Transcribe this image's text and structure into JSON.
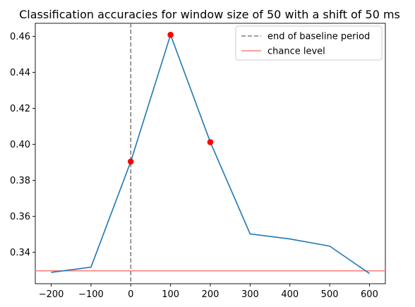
{
  "chart_data": {
    "type": "line",
    "title": "Classification accuracies for window size of 50 with a shift of 50 ms",
    "xlabel": "",
    "ylabel": "",
    "xlim": [
      -240,
      640
    ],
    "ylim": [
      0.3225,
      0.4673
    ],
    "x_ticks": [
      -200,
      -100,
      0,
      100,
      200,
      300,
      400,
      500,
      600
    ],
    "x_tick_labels": [
      "−200",
      "−100",
      "0",
      "100",
      "200",
      "300",
      "400",
      "500",
      "600"
    ],
    "y_ticks": [
      0.34,
      0.36,
      0.38,
      0.4,
      0.42,
      0.44,
      0.46
    ],
    "y_tick_labels": [
      "0.34",
      "0.36",
      "0.38",
      "0.40",
      "0.42",
      "0.44",
      "0.46"
    ],
    "grid": false,
    "legend_position": "top-right",
    "series": [
      {
        "x": [
          -200,
          -100,
          0,
          100,
          200,
          300,
          400,
          500,
          600
        ],
        "y": [
          0.3288,
          0.3317,
          0.3904,
          0.4609,
          0.4012,
          0.3502,
          0.3474,
          0.3434,
          0.3282
        ],
        "color": "#1f77b4"
      }
    ],
    "highlight_points": {
      "x": [
        0,
        100,
        200
      ],
      "y": [
        0.3904,
        0.4609,
        0.4012
      ],
      "color": "#ff0000"
    },
    "reference_lines": [
      {
        "orientation": "vertical",
        "value": 0,
        "style": "dashed",
        "color": "#7f7f7f",
        "label": "end of baseline period"
      },
      {
        "orientation": "horizontal",
        "value": 0.3297,
        "style": "solid",
        "color": "#ff7f7f",
        "label": "chance level"
      }
    ]
  }
}
